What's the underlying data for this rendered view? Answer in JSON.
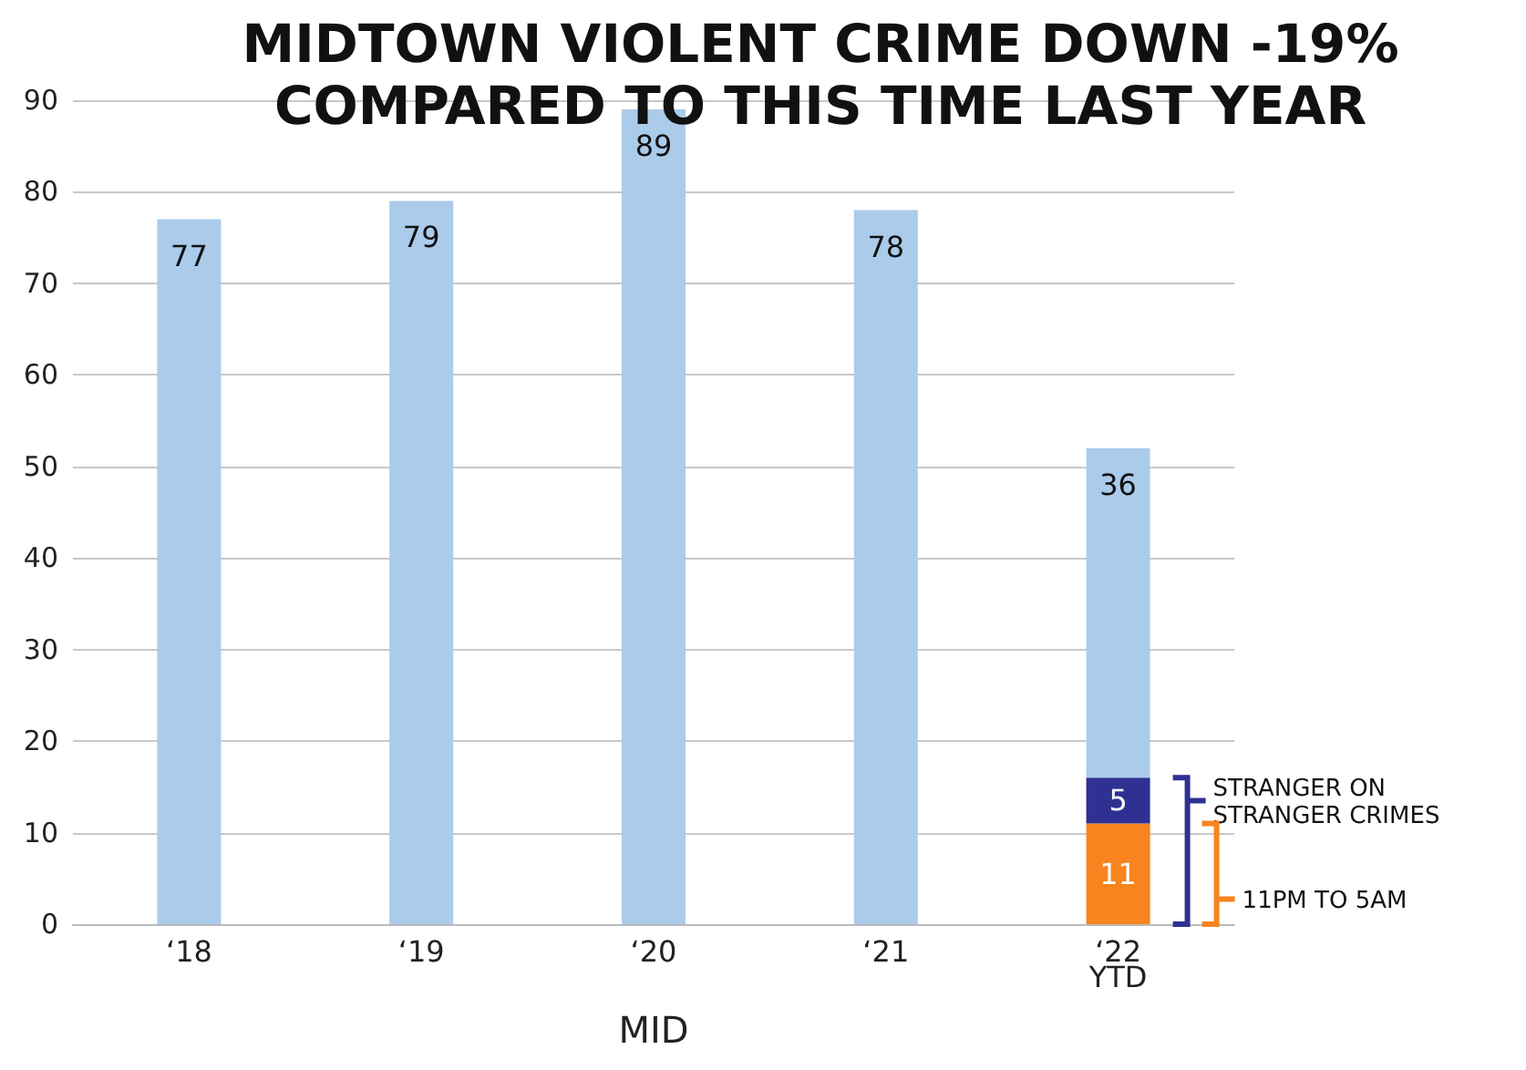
{
  "chart_data": {
    "type": "bar",
    "title": "MIDTOWN VIOLENT CRIME DOWN -19%\nCOMPARED TO THIS TIME LAST YEAR",
    "xlabel": "MID",
    "categories": [
      "‘18",
      "‘19",
      "‘20",
      "‘21",
      "‘22\nYTD"
    ],
    "stacked": true,
    "series": [
      {
        "color": "#f7841e",
        "values": [
          null,
          null,
          null,
          null,
          11
        ]
      },
      {
        "color": "#2e3192",
        "values": [
          null,
          null,
          null,
          null,
          5
        ]
      },
      {
        "color": "#abcbeb",
        "values": [
          77,
          79,
          89,
          78,
          36
        ]
      }
    ],
    "annotations": [
      "STRANGER ON STRANGER CRIMES",
      "11PM TO 5AM"
    ],
    "data_labels": true,
    "ylim": [
      0,
      90
    ],
    "yticks": [
      0,
      10,
      20,
      30,
      40,
      50,
      60,
      70,
      80,
      90
    ],
    "grid": "y"
  }
}
